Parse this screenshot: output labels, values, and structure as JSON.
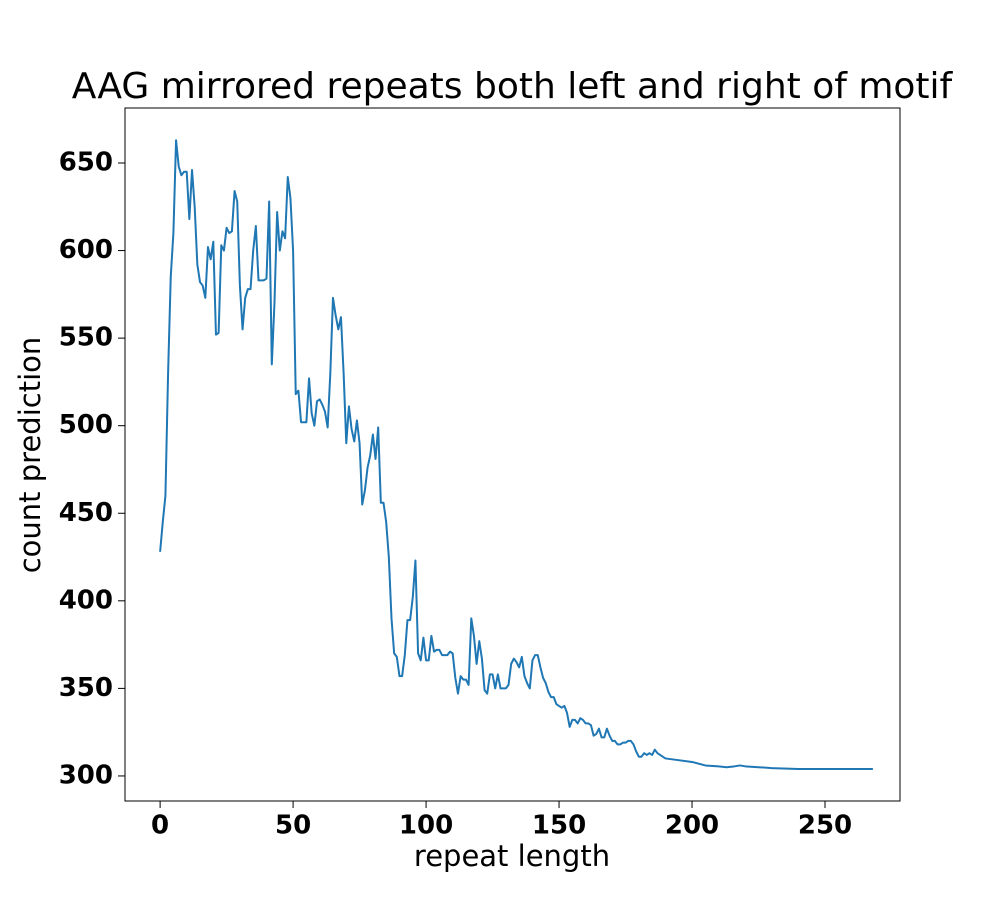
{
  "chart_data": {
    "type": "line",
    "title": "AAG mirrored repeats both left and right of motif",
    "x_label": "repeat length",
    "y_label": "count prediction",
    "x": [
      0,
      1,
      2,
      3,
      4,
      5,
      6,
      7,
      8,
      9,
      10,
      11,
      12,
      13,
      14,
      15,
      16,
      17,
      18,
      19,
      20,
      21,
      22,
      23,
      24,
      25,
      26,
      27,
      28,
      29,
      30,
      31,
      32,
      33,
      34,
      35,
      36,
      37,
      38,
      39,
      40,
      41,
      42,
      43,
      44,
      45,
      46,
      47,
      48,
      49,
      50,
      51,
      52,
      53,
      54,
      55,
      56,
      57,
      58,
      59,
      60,
      61,
      62,
      63,
      64,
      65,
      66,
      67,
      68,
      69,
      70,
      71,
      72,
      73,
      74,
      75,
      76,
      77,
      78,
      79,
      80,
      81,
      82,
      83,
      84,
      85,
      86,
      87,
      88,
      89,
      90,
      91,
      92,
      93,
      94,
      95,
      96,
      97,
      98,
      99,
      100,
      101,
      102,
      103,
      104,
      105,
      106,
      107,
      108,
      109,
      110,
      111,
      112,
      113,
      114,
      115,
      116,
      117,
      118,
      119,
      120,
      121,
      122,
      123,
      124,
      125,
      126,
      127,
      128,
      129,
      130,
      131,
      132,
      133,
      134,
      135,
      136,
      137,
      138,
      139,
      140,
      141,
      142,
      143,
      144,
      145,
      146,
      147,
      148,
      149,
      150,
      151,
      152,
      153,
      154,
      155,
      156,
      157,
      158,
      159,
      160,
      161,
      162,
      163,
      164,
      165,
      166,
      167,
      168,
      169,
      170,
      171,
      172,
      173,
      174,
      175,
      176,
      177,
      178,
      179,
      180,
      181,
      182,
      183,
      184,
      185,
      186,
      187,
      188,
      189,
      190,
      195,
      200,
      205,
      210,
      213,
      216,
      218,
      220,
      225,
      230,
      240,
      250,
      260,
      268
    ],
    "series": [
      {
        "name": "count prediction",
        "color": "#1f77b4",
        "values": [
          428,
          445,
          460,
          530,
          585,
          610,
          663,
          648,
          643,
          645,
          645,
          618,
          646,
          625,
          592,
          582,
          580,
          573,
          602,
          595,
          605,
          552,
          553,
          603,
          600,
          613,
          610,
          611,
          634,
          628,
          580,
          555,
          573,
          578,
          578,
          600,
          614,
          583,
          583,
          583,
          584,
          628,
          535,
          570,
          622,
          600,
          611,
          607,
          642,
          630,
          600,
          518,
          520,
          502,
          502,
          502,
          527,
          507,
          500,
          514,
          515,
          512,
          508,
          499,
          530,
          573,
          563,
          555,
          562,
          530,
          490,
          511,
          498,
          491,
          503,
          490,
          455,
          463,
          476,
          483,
          495,
          481,
          499,
          456,
          456,
          445,
          425,
          390,
          370,
          368,
          357,
          357,
          369,
          389,
          389,
          402,
          423,
          370,
          366,
          379,
          366,
          366,
          380,
          371,
          372,
          372,
          369,
          369,
          369,
          371,
          370,
          356,
          347,
          357,
          355,
          355,
          352,
          390,
          380,
          364,
          377,
          367,
          349,
          347,
          358,
          358,
          350,
          358,
          350,
          350,
          350,
          352,
          364,
          367,
          365,
          362,
          368,
          357,
          353,
          350,
          366,
          369,
          369,
          362,
          356,
          353,
          348,
          345,
          345,
          341,
          340,
          339,
          340,
          336,
          328,
          332,
          332,
          330,
          333,
          332,
          330,
          330,
          329,
          323,
          324,
          327,
          322,
          322,
          327,
          323,
          320,
          320,
          318,
          318,
          319,
          319,
          320,
          320,
          318,
          314,
          311,
          311,
          313,
          312,
          313,
          312,
          315,
          313,
          312,
          311,
          310,
          309,
          308,
          306,
          305.5,
          305,
          305.5,
          306,
          305.5,
          305,
          304.5,
          304,
          304,
          304,
          304
        ]
      }
    ],
    "xlim": [
      -13.2,
      278.2
    ],
    "ylim": [
      285.7,
      681.4
    ],
    "xticks": [
      0,
      50,
      100,
      150,
      200,
      250
    ],
    "yticks": [
      300,
      350,
      400,
      450,
      500,
      550,
      600,
      650
    ],
    "grid": false
  }
}
